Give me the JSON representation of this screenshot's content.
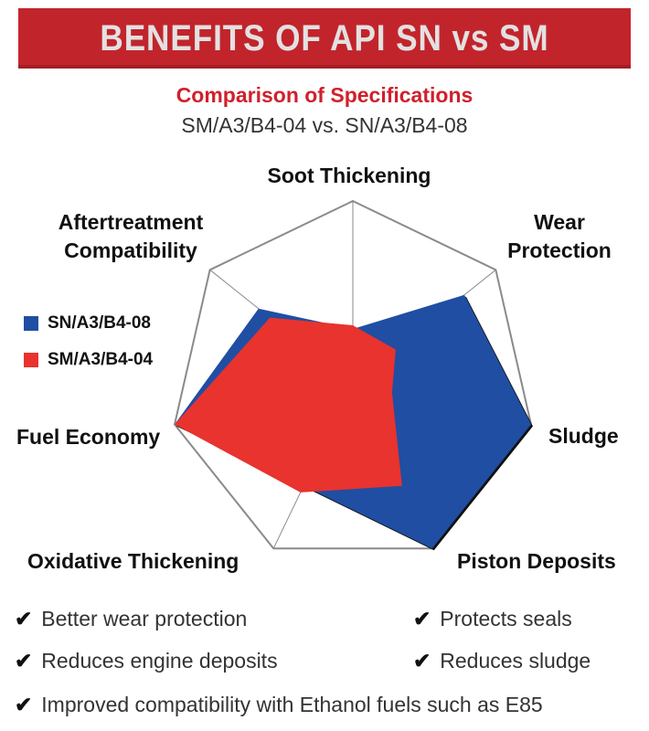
{
  "header": {
    "title": "BENEFITS OF API SN vs SM",
    "subtitle": "Comparison of Specifications",
    "subtitle2": "SM/A3/B4-04 vs. SN/A3/B4-08"
  },
  "colors": {
    "banner": "#c2242c",
    "sn": "#1f4ea3",
    "sm": "#e8332e",
    "subtitle": "#d0202c"
  },
  "chart_data": {
    "type": "radar",
    "axes": [
      "Soot Thickening",
      "Wear Protection",
      "Sludge",
      "Piston Deposits",
      "Oxidative Thickening",
      "Fuel Economy",
      "Aftertreatment Compatibility"
    ],
    "axis_labels": [
      [
        "Soot Thickening"
      ],
      [
        "Wear",
        "Protection"
      ],
      [
        "Sludge"
      ],
      [
        "Piston Deposits"
      ],
      [
        "Oxidative Thickening"
      ],
      [
        "Fuel Economy"
      ],
      [
        "Aftertreatment",
        "Compatibility"
      ]
    ],
    "range": [
      0,
      5
    ],
    "rings": 5,
    "series": [
      {
        "name": "SN/A3/B4-08",
        "color": "#1f4ea3",
        "values": [
          1.5,
          3.9,
          5.0,
          5.0,
          3.1,
          5.0,
          3.3
        ]
      },
      {
        "name": "SM/A3/B4-04",
        "color": "#e8332e",
        "values": [
          1.6,
          1.5,
          1.1,
          3.1,
          3.3,
          5.0,
          2.9
        ]
      }
    ],
    "legend_position": "left"
  },
  "bullets": {
    "b1": "Better wear protection",
    "b2": "Protects seals",
    "b3": "Reduces engine deposits",
    "b4": "Reduces sludge",
    "b5": "Improved compatibility with Ethanol fuels such as E85",
    "check": "✔"
  }
}
